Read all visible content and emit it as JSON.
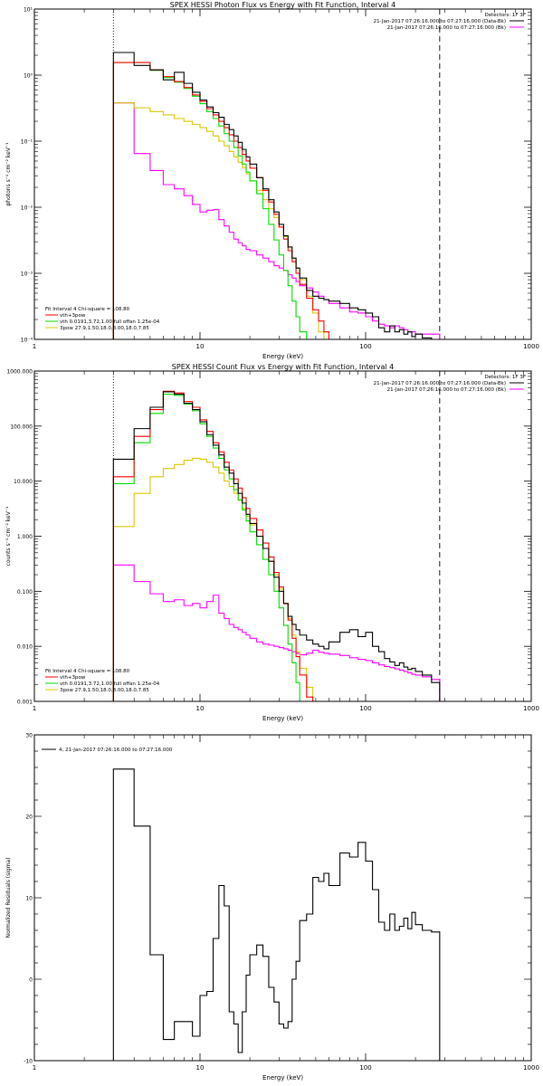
{
  "colors": {
    "data": "#000000",
    "total": "#ff0000",
    "vth": "#00dd00",
    "pow": "#d8c800",
    "background": "#ff00ff",
    "axis": "#000000"
  },
  "chart_data": [
    {
      "type": "line",
      "scale": "log-log",
      "title": "SPEX HESSI Photon Flux vs Energy with Fit Function, Interval 4",
      "xlabel": "Energy (keV)",
      "ylabel": "photons s⁻¹ cm⁻² keV⁻¹",
      "xlim": [
        1,
        1000
      ],
      "ylim": [
        0.0001,
        10
      ],
      "xticks": [
        "1",
        "10",
        "100",
        "1000"
      ],
      "yticks": [
        "10⁻⁴",
        "10⁻³",
        "10⁻²",
        "10⁻¹",
        "10⁰",
        "10¹"
      ],
      "legend_top": {
        "detectors": "Detectors: 1F 3F",
        "lines": [
          {
            "text": "21-Jan-2017 07:26:16.000 to 07:27:16.000 (Data-Bk)",
            "color_key": "data"
          },
          {
            "text": "21-Jan-2017 07:26:16.000 to 07:27:16.000 (Bk)",
            "color_key": "background"
          }
        ]
      },
      "legend_bottom": {
        "header": "Fit Interval  4   Chi-square = 108.80",
        "entries": [
          {
            "text": "vth+3pow",
            "color_key": "total"
          },
          {
            "text": "vth 0.0191,3.72,1.00  full offan 1.25e-04",
            "color_key": "vth"
          },
          {
            "text": "3pow 27.9,1.50,18.0,8.00,18.0,7.85",
            "color_key": "pow"
          }
        ]
      },
      "vlines": [
        {
          "x": 3,
          "style": "dotted"
        },
        {
          "x": 280,
          "style": "dashed"
        }
      ],
      "x_edges": [
        3,
        3.5,
        4,
        4.5,
        5,
        5.5,
        6,
        6.5,
        7,
        7.5,
        8,
        8.5,
        9,
        9.5,
        10,
        11,
        12,
        13,
        14,
        15,
        16,
        17,
        18,
        19,
        20,
        22,
        24,
        26,
        28,
        30,
        32,
        34,
        36,
        38,
        40,
        44,
        48,
        52,
        56,
        60,
        70,
        80,
        90,
        100,
        110,
        120,
        130,
        140,
        150,
        160,
        170,
        180,
        190,
        200,
        220,
        250,
        280
      ],
      "series": [
        {
          "name": "Data-Bk",
          "color_key": "data",
          "x0": 3,
          "values": [
            2.2,
            2.2,
            1.4,
            1.4,
            1.2,
            1.2,
            0.85,
            0.85,
            1.1,
            1.1,
            0.75,
            0.75,
            0.55,
            0.55,
            0.42,
            0.33,
            0.27,
            0.23,
            0.18,
            0.15,
            0.12,
            0.096,
            0.075,
            0.058,
            0.045,
            0.028,
            0.019,
            0.013,
            0.0085,
            0.0055,
            0.0037,
            0.0025,
            0.0017,
            0.0012,
            0.00085,
            0.00055,
            0.00045,
            0.00042,
            0.0004,
            0.00038,
            0.00035,
            0.0003,
            0.00028,
            0.00025,
            0.00022,
            0.00015,
            0.00013,
            0.00016,
            0.00013,
            0.00014,
            0.00012,
            0.00013,
            0.00011,
            0.00012,
            0.000105,
            0.0001
          ]
        },
        {
          "name": "vth+3pow",
          "color_key": "total",
          "x0": 3,
          "values": [
            1.55,
            1.55,
            1.55,
            1.55,
            1.2,
            1.2,
            0.95,
            0.95,
            0.8,
            0.8,
            0.65,
            0.65,
            0.5,
            0.5,
            0.4,
            0.31,
            0.25,
            0.2,
            0.16,
            0.125,
            0.1,
            0.08,
            0.063,
            0.05,
            0.039,
            0.028,
            0.018,
            0.012,
            0.0078,
            0.005,
            0.0033,
            0.0022,
            0.0015,
            0.001,
            0.00068,
            0.00042,
            0.00028,
            0.00019,
            0.00013,
            0.0001
          ]
        },
        {
          "name": "vth",
          "color_key": "vth",
          "x0": 3,
          "values": [
            1.55,
            1.55,
            1.55,
            1.55,
            1.18,
            1.18,
            0.92,
            0.92,
            0.78,
            0.78,
            0.63,
            0.63,
            0.48,
            0.48,
            0.37,
            0.28,
            0.22,
            0.17,
            0.13,
            0.1,
            0.08,
            0.06,
            0.045,
            0.034,
            0.025,
            0.016,
            0.0095,
            0.0055,
            0.0032,
            0.0019,
            0.0011,
            0.00065,
            0.00038,
            0.00022,
            0.00013
          ]
        },
        {
          "name": "3pow",
          "color_key": "pow",
          "x0": 3,
          "values": [
            0.38,
            0.38,
            0.32,
            0.32,
            0.28,
            0.28,
            0.25,
            0.25,
            0.22,
            0.22,
            0.2,
            0.2,
            0.18,
            0.18,
            0.16,
            0.14,
            0.12,
            0.1,
            0.085,
            0.07,
            0.058,
            0.048,
            0.04,
            0.032,
            0.025,
            0.018,
            0.013,
            0.0095,
            0.007,
            0.005,
            0.0036,
            0.0025,
            0.0017,
            0.0012,
            0.0008,
            0.00045,
            0.00025,
            0.00013
          ]
        },
        {
          "name": "Bk",
          "color_key": "background",
          "x0": 3,
          "values": [
            0.38,
            0.38,
            0.065,
            0.065,
            0.036,
            0.036,
            0.022,
            0.022,
            0.019,
            0.019,
            0.015,
            0.015,
            0.011,
            0.011,
            0.0085,
            0.009,
            0.0092,
            0.0065,
            0.0052,
            0.0042,
            0.0033,
            0.0029,
            0.0026,
            0.0023,
            0.0022,
            0.0019,
            0.0017,
            0.0015,
            0.0013,
            0.0012,
            0.0011,
            0.00095,
            0.00085,
            0.00075,
            0.00065,
            0.0006,
            0.00052,
            0.00045,
            0.0004,
            0.00035,
            0.0003,
            0.00026,
            0.00025,
            0.00022,
            0.00019,
            0.00017,
            0.00016,
            0.00015,
            0.00016,
            0.00015,
            0.00014,
            0.00013,
            0.00013,
            0.00012,
            0.00012,
            0.00012
          ]
        }
      ]
    },
    {
      "type": "line",
      "scale": "log-log",
      "title": "SPEX HESSI Count Flux vs Energy with Fit Function, Interval 4",
      "xlabel": "Energy (keV)",
      "ylabel": "counts s⁻¹ cm⁻² keV⁻¹",
      "xlim": [
        1,
        1000
      ],
      "ylim": [
        0.001,
        1000
      ],
      "xticks": [
        "1",
        "10",
        "100",
        "1000"
      ],
      "yticks": [
        "0.001",
        "0.010",
        "0.100",
        "1.000",
        "10.000",
        "100.000",
        "1000.000"
      ],
      "legend_top": {
        "detectors": "Detectors: 1F 3F",
        "lines": [
          {
            "text": "21-Jan-2017 07:26:16.000 to 07:27:16.000 (Data-Bk)",
            "color_key": "data"
          },
          {
            "text": "21-Jan-2017 07:26:16.000 to 07:27:16.000 (Bk)",
            "color_key": "background"
          }
        ]
      },
      "legend_bottom": {
        "header": "Fit Interval  4   Chi-square = 108.80",
        "entries": [
          {
            "text": "vth+3pow",
            "color_key": "total"
          },
          {
            "text": "vth 0.0191,3.72,1.00  full offan 1.25e-04",
            "color_key": "vth"
          },
          {
            "text": "3pow 27.9,1.50,18.0,8.00,18.0,7.85",
            "color_key": "pow"
          }
        ]
      },
      "vlines": [
        {
          "x": 3,
          "style": "dotted"
        },
        {
          "x": 280,
          "style": "dashed"
        }
      ],
      "x_edges": [
        3,
        3.5,
        4,
        4.5,
        5,
        5.5,
        6,
        6.5,
        7,
        7.5,
        8,
        8.5,
        9,
        9.5,
        10,
        11,
        12,
        13,
        14,
        15,
        16,
        17,
        18,
        19,
        20,
        22,
        24,
        26,
        28,
        30,
        32,
        34,
        36,
        38,
        40,
        44,
        48,
        52,
        56,
        60,
        70,
        80,
        90,
        100,
        110,
        120,
        130,
        140,
        150,
        160,
        170,
        180,
        190,
        200,
        220,
        250,
        280
      ],
      "series": [
        {
          "name": "Data-Bk",
          "color_key": "data",
          "x0": 3,
          "values": [
            25,
            25,
            90,
            90,
            220,
            220,
            420,
            420,
            380,
            380,
            260,
            260,
            200,
            200,
            120,
            70,
            45,
            30,
            18,
            14,
            9,
            6,
            4,
            2.5,
            1.7,
            1.0,
            0.6,
            0.35,
            0.18,
            0.1,
            0.06,
            0.035,
            0.025,
            0.02,
            0.016,
            0.013,
            0.011,
            0.01,
            0.009,
            0.012,
            0.018,
            0.02,
            0.015,
            0.018,
            0.01,
            0.008,
            0.006,
            0.0052,
            0.0045,
            0.005,
            0.0042,
            0.0038,
            0.004,
            0.0035,
            0.003,
            0.0022
          ]
        },
        {
          "name": "vth+3pow",
          "color_key": "total",
          "x0": 3,
          "values": [
            12,
            12,
            65,
            65,
            200,
            200,
            430,
            430,
            400,
            400,
            280,
            280,
            220,
            220,
            130,
            80,
            50,
            34,
            22,
            16,
            11,
            7.5,
            5,
            3.2,
            2.1,
            1.3,
            0.75,
            0.42,
            0.22,
            0.12,
            0.06,
            0.03,
            0.014,
            0.0065,
            0.003,
            0.0012
          ]
        },
        {
          "name": "vth",
          "color_key": "vth",
          "x0": 3,
          "values": [
            9,
            9,
            50,
            50,
            170,
            170,
            380,
            380,
            360,
            360,
            250,
            250,
            190,
            190,
            110,
            65,
            40,
            26,
            16,
            11,
            7,
            4.6,
            3,
            1.9,
            1.2,
            0.7,
            0.38,
            0.2,
            0.1,
            0.05,
            0.024,
            0.011,
            0.005,
            0.0022
          ]
        },
        {
          "name": "3pow",
          "color_key": "pow",
          "x0": 3,
          "values": [
            1.5,
            1.5,
            6,
            6,
            12,
            12,
            17,
            17,
            20,
            20,
            24,
            24,
            26,
            26,
            25,
            22,
            18,
            14,
            10,
            8,
            6,
            4.5,
            3.2,
            2.3,
            1.6,
            1.0,
            0.6,
            0.35,
            0.2,
            0.11,
            0.06,
            0.032,
            0.016,
            0.008,
            0.004,
            0.0018
          ]
        },
        {
          "name": "Bk",
          "color_key": "background",
          "x0": 3,
          "values": [
            0.3,
            0.3,
            0.15,
            0.15,
            0.09,
            0.09,
            0.065,
            0.065,
            0.07,
            0.07,
            0.055,
            0.055,
            0.06,
            0.06,
            0.05,
            0.065,
            0.085,
            0.04,
            0.032,
            0.025,
            0.022,
            0.02,
            0.018,
            0.016,
            0.014,
            0.012,
            0.011,
            0.0105,
            0.01,
            0.0095,
            0.009,
            0.0085,
            0.008,
            0.0075,
            0.007,
            0.0075,
            0.0085,
            0.0078,
            0.0075,
            0.0072,
            0.0068,
            0.0062,
            0.0058,
            0.0055,
            0.005,
            0.0046,
            0.0043,
            0.0041,
            0.0039,
            0.0037,
            0.0035,
            0.0033,
            0.0031,
            0.003,
            0.0028,
            0.0025
          ]
        }
      ]
    },
    {
      "type": "line",
      "scale": "log-linear",
      "title": "",
      "xlabel": "Energy (keV)",
      "ylabel": "Normalized Residuals (sigma)",
      "xlim": [
        1,
        1000
      ],
      "ylim": [
        -10,
        30
      ],
      "xticks": [
        "1",
        "10",
        "100",
        "1000"
      ],
      "yticks": [
        "-10",
        "0",
        "10",
        "20",
        "30"
      ],
      "legend_top": {
        "detectors": "",
        "lines": [
          {
            "text": "4, 21-Jan-2017 07:26:16.000 to 07:27:16.000",
            "color_key": "data"
          }
        ]
      },
      "legend_bottom": {
        "header": "",
        "entries": []
      },
      "vlines": [],
      "x_edges": [
        3,
        3.5,
        4,
        4.5,
        5,
        5.5,
        6,
        6.5,
        7,
        7.5,
        8,
        8.5,
        9,
        9.5,
        10,
        11,
        12,
        13,
        14,
        15,
        16,
        17,
        18,
        19,
        20,
        22,
        24,
        26,
        28,
        30,
        32,
        34,
        36,
        38,
        40,
        44,
        48,
        52,
        56,
        60,
        70,
        80,
        90,
        100,
        110,
        120,
        130,
        140,
        150,
        160,
        170,
        180,
        190,
        200,
        220,
        250,
        280
      ],
      "series": [
        {
          "name": "residuals",
          "color_key": "data",
          "x0": 3,
          "values": [
            25.8,
            25.8,
            18.8,
            18.8,
            3.0,
            3.0,
            -7.4,
            -7.4,
            -5.2,
            -5.2,
            -5.2,
            -5.2,
            -7.0,
            -7.0,
            -2.0,
            -1.5,
            5.0,
            11.5,
            9.0,
            -4.0,
            -5.5,
            -9.0,
            -4.0,
            0.5,
            3.0,
            4.2,
            2.8,
            -1.0,
            -2.8,
            -5.5,
            -6.0,
            -5.2,
            0.0,
            2.2,
            7.2,
            8.0,
            12.5,
            12.0,
            13.0,
            11.5,
            15.5,
            15.0,
            16.8,
            14.5,
            11.0,
            7.0,
            6.0,
            8.0,
            6.0,
            6.5,
            7.5,
            6.2,
            8.2,
            6.7,
            6.0,
            5.8
          ]
        }
      ]
    }
  ]
}
